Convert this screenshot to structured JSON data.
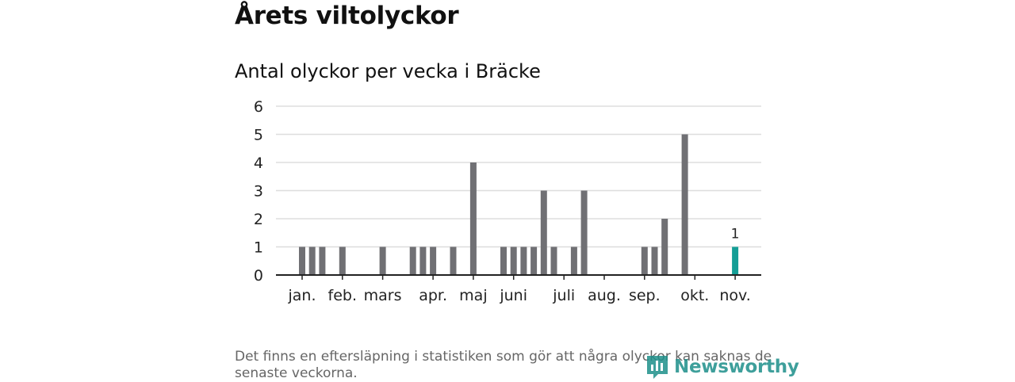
{
  "header": {
    "title": "Årets viltolyckor",
    "subtitle": "Antal olyckor per vecka i Bräcke"
  },
  "footnote": "Det finns en eftersläpning i statistiken som gör att några olyckor kan saknas de senaste veckorna.",
  "logo": {
    "text": "Newsworthy",
    "icon": "newsworthy-logo-icon"
  },
  "colors": {
    "bar": "#707074",
    "highlight": "#149e96",
    "grid": "#dddddd",
    "axis": "#222222"
  },
  "chart_data": {
    "type": "bar",
    "title": "Antal olyckor per vecka i Bräcke",
    "xlabel": "",
    "ylabel": "",
    "ylim": [
      0,
      6
    ],
    "yticks": [
      0,
      1,
      2,
      3,
      4,
      5,
      6
    ],
    "grid": true,
    "month_ticks": [
      {
        "label": "jan.",
        "week": 1
      },
      {
        "label": "feb.",
        "week": 5
      },
      {
        "label": "mars",
        "week": 9
      },
      {
        "label": "apr.",
        "week": 14
      },
      {
        "label": "maj",
        "week": 18
      },
      {
        "label": "juni",
        "week": 22
      },
      {
        "label": "juli",
        "week": 27
      },
      {
        "label": "aug.",
        "week": 31
      },
      {
        "label": "sep.",
        "week": 35
      },
      {
        "label": "okt.",
        "week": 40
      },
      {
        "label": "nov.",
        "week": 44
      }
    ],
    "weeks": [
      1,
      2,
      3,
      4,
      5,
      6,
      7,
      8,
      9,
      10,
      11,
      12,
      13,
      14,
      15,
      16,
      17,
      18,
      19,
      20,
      21,
      22,
      23,
      24,
      25,
      26,
      27,
      28,
      29,
      30,
      31,
      32,
      33,
      34,
      35,
      36,
      37,
      38,
      39,
      40,
      41,
      42,
      43,
      44
    ],
    "values": [
      1,
      1,
      1,
      0,
      1,
      0,
      0,
      0,
      1,
      0,
      0,
      1,
      1,
      1,
      0,
      1,
      0,
      4,
      0,
      0,
      1,
      1,
      1,
      1,
      3,
      1,
      0,
      1,
      3,
      0,
      0,
      0,
      0,
      0,
      1,
      1,
      2,
      0,
      5,
      0,
      0,
      0,
      0,
      1
    ],
    "highlight": {
      "week": 44,
      "value": 1,
      "label": "1"
    }
  }
}
